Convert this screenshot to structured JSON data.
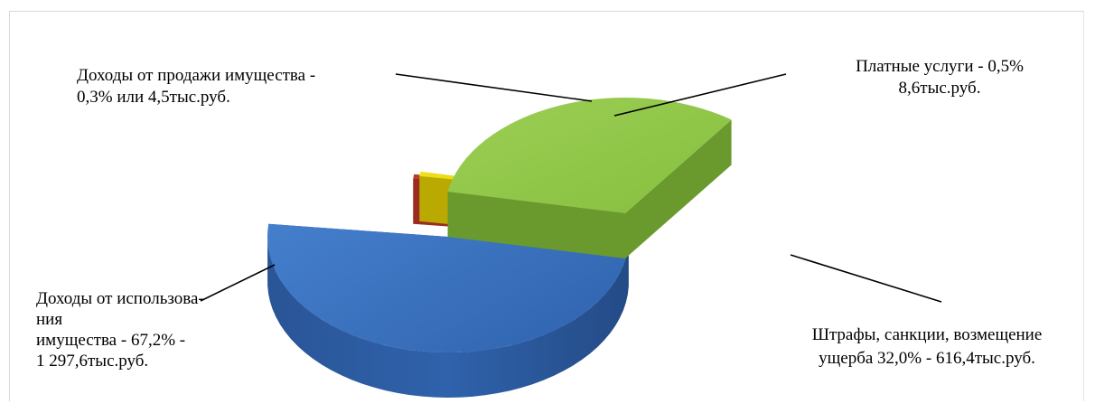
{
  "chart_data": {
    "type": "pie",
    "style": "3d-exploded",
    "title": "",
    "slices": [
      {
        "name": "Доходы от использования имущества",
        "percent": 67.2,
        "value_text": "1 297,6тыс.руб.",
        "label_lines": [
          "Доходы от  использова-",
          "ния",
          "имущества - 67,2% -",
          "1 297,6тыс.руб."
        ],
        "color": "#3B73C2"
      },
      {
        "name": "Доходы от продажи имущества",
        "percent": 0.3,
        "value_text": "4,5тыс.руб.",
        "label_lines": [
          "Доходы от продажи имущества -",
          "0,3% или 4,5тыс.руб."
        ],
        "color": "#C0392B"
      },
      {
        "name": "Платные услуги",
        "percent": 0.5,
        "value_text": "8,6тыс.руб.",
        "label_lines": [
          "Платные услуги -  0,5%",
          "",
          "8,6тыс.руб."
        ],
        "color": "#E6D400"
      },
      {
        "name": "Штрафы, санкции, возмещение ущерба",
        "percent": 32.0,
        "value_text": "616,4тыс.руб.",
        "label_lines": [
          "Штрафы, санкции, возмещение",
          "ущерба 32,0% - 616,4тыс.руб."
        ],
        "color": "#8BC34A"
      }
    ],
    "legend": "none"
  }
}
